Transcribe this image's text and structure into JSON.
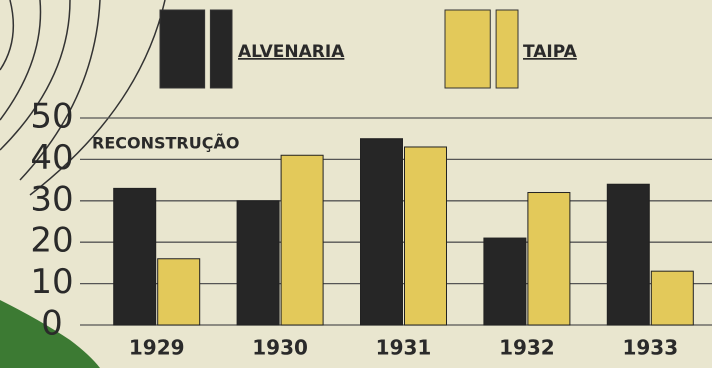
{
  "chart_data": {
    "type": "bar",
    "annotation": "RECONSTRUÇÃO",
    "categories": [
      "1929",
      "1930",
      "1931",
      "1932",
      "1933"
    ],
    "series": [
      {
        "name": "ALVENARIA",
        "color": "#262626",
        "values": [
          33,
          30,
          45,
          21,
          34
        ]
      },
      {
        "name": "TAIPA",
        "color": "#e3c95a",
        "values": [
          16,
          41,
          43,
          32,
          13
        ]
      }
    ],
    "ylim": [
      0,
      50
    ],
    "yticks": [
      0,
      10,
      20,
      30,
      40,
      50
    ],
    "grid": true
  }
}
